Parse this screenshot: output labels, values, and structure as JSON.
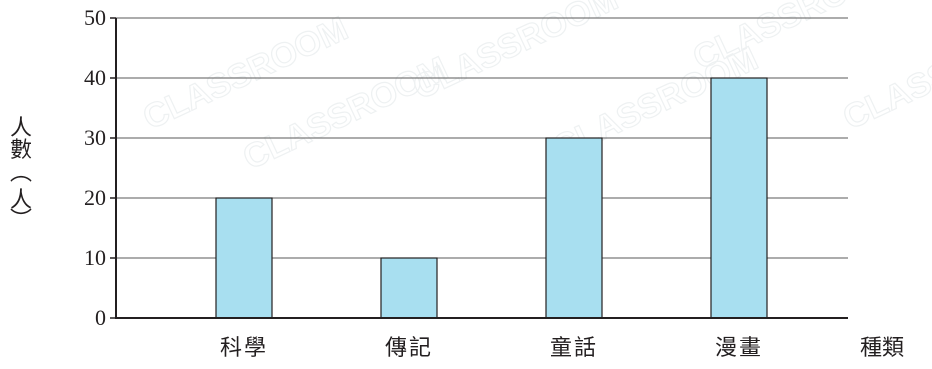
{
  "chart_data": {
    "type": "bar",
    "categories": [
      "科學",
      "傳記",
      "童話",
      "漫畫"
    ],
    "values": [
      20,
      10,
      30,
      40
    ],
    "ylabel": "人數(人)",
    "xlabel": "種類",
    "ylim": [
      0,
      50
    ],
    "yticks": [
      0,
      10,
      20,
      30,
      40,
      50
    ],
    "grid": true,
    "colors": {
      "bar_fill": "#a8dff0",
      "bar_stroke": "#231f20",
      "grid": "#5a5a5a",
      "axis": "#231f20"
    }
  },
  "watermark": "CLASSROOM"
}
